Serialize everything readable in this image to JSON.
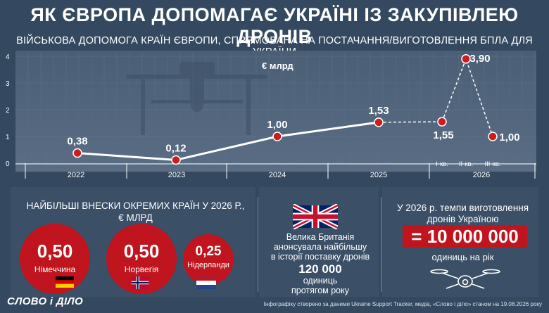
{
  "header": {
    "title": "ЯК ЄВРОПА ДОПОМАГАЄ УКРАЇНІ ІЗ ЗАКУПІВЛЕЮ ДРОНІВ",
    "subtitle": "ВІЙСЬКОВА ДОПОМОГА КРАЇН ЄВРОПИ, СПРЯМОВАНА НА ПОСТАЧАННЯ/ВИГОТОВЛЕННЯ БПЛА ДЛЯ УКРАЇНИ"
  },
  "chart_data": {
    "type": "line",
    "unit_label": "€ млрд",
    "ylim": [
      0,
      4
    ],
    "yticks": [
      "0",
      "1",
      "2",
      "3",
      "4"
    ],
    "grid": true,
    "categories": [
      "2022",
      "2023",
      "2024",
      "2025",
      "2026"
    ],
    "sub_categories": [
      "І-кв.",
      "ІІ-кв.",
      "ІІІ-кв."
    ],
    "points": [
      {
        "x": "2022",
        "y": 0.38,
        "label": "0,38"
      },
      {
        "x": "2023",
        "y": 0.12,
        "label": "0,12"
      },
      {
        "x": "2024",
        "y": 1.0,
        "label": "1,00"
      },
      {
        "x": "2025",
        "y": 1.53,
        "label": "1,53"
      },
      {
        "x": "2026 І-кв.",
        "y": 1.55,
        "label": "1,55"
      },
      {
        "x": "2026 ІІ-кв.",
        "y": 3.9,
        "label": "3,90"
      },
      {
        "x": "2026 ІІІ-кв.",
        "y": 1.0,
        "label": "1,00"
      }
    ]
  },
  "countries": {
    "title_line1": "НАЙБІЛЬШІ ВНЕСКИ ОКРЕМИХ КРАЇН У 2026 Р.,",
    "title_line2": "€ МЛРД",
    "items": [
      {
        "value": "0,50",
        "name": "Німеччина"
      },
      {
        "value": "0,50",
        "name": "Норвегія"
      },
      {
        "value": "0,25",
        "name": "Нідерланди"
      }
    ]
  },
  "uk": {
    "line1": "Велика Британія",
    "line2": "анонсувала найбільшу",
    "line3": "в історії поставку дронів",
    "amount": "120 000",
    "line4": "одиниць",
    "line5": "протягом року"
  },
  "production": {
    "line1": "У 2026 р. темпи виготовлення",
    "line2": "дронів Україною",
    "big": "= 10 000 000",
    "unit": "одиниць на рік"
  },
  "footer": {
    "logo": "СЛОВО і ДІЛО",
    "note": "Інфографіку створено за даними Ukraine Support Tracker, медіа, «Слово і діло» станом на 19.08.2026 року"
  },
  "colors": {
    "background": "#34495f",
    "accent_red": "#c0141e",
    "point_red": "#c81e1e"
  }
}
